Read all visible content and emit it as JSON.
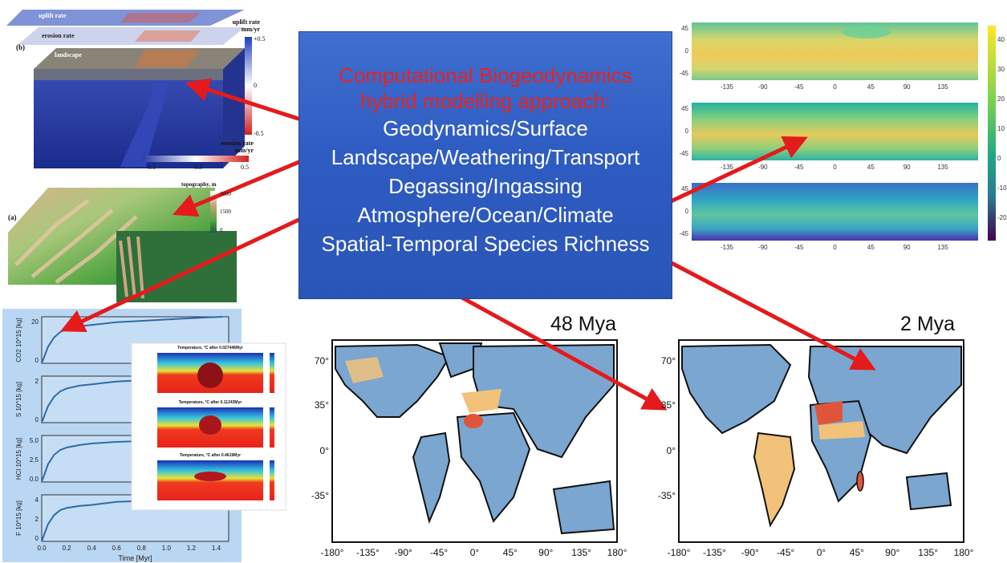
{
  "center": {
    "title_line1": "Computational Biogeodynamics",
    "title_line2": "hybrid modelling approach:",
    "items": [
      "Geodynamics/Surface",
      "Landscape/Weathering/Transport",
      "Degassing/Ingassing",
      "Atmosphere/Ocean/Climate",
      "Spatial-Temporal Species Richness"
    ]
  },
  "block_model": {
    "panel_label": "(b)",
    "layer_labels": [
      "uplift rate",
      "erosion rate",
      "landscape"
    ],
    "uplift_legend": {
      "title_line1": "uplift rate",
      "title_line2": "mm/yr",
      "ticks": [
        "+0.5",
        "0",
        "-0.5"
      ]
    },
    "erosion_legend": {
      "title_line1": "erosion rate",
      "title_line2": "mm/yr",
      "ticks": [
        "0.1",
        "0.3",
        "0.5"
      ]
    }
  },
  "topo": {
    "panel_label": "(a)",
    "legend_title": "topography, m",
    "ticks": [
      "3000",
      "1500",
      "0"
    ]
  },
  "degassing": {
    "ylabels": [
      "CO2 10^15 [kg]",
      "S 10^15 [kg]",
      "HCl 10^15 [kg]",
      "F 10^15 [kg]"
    ],
    "yticks": [
      [
        "20",
        "0"
      ],
      [
        "2",
        "0"
      ],
      [
        "5.0",
        "2.5",
        "0.0"
      ],
      [
        "4",
        "2",
        "0"
      ]
    ],
    "xticks": [
      "0.0",
      "0.2",
      "0.4",
      "0.6",
      "0.8",
      "1.0",
      "1.2",
      "1.4"
    ],
    "xlabel": "Time [Myr]",
    "chart_data": [
      {
        "type": "line",
        "ylabel": "CO2 10^15 [kg]",
        "x": [
          0,
          0.05,
          0.1,
          0.15,
          0.2,
          0.3,
          0.4,
          0.6,
          0.8,
          1.0,
          1.2,
          1.45
        ],
        "y": [
          0,
          12,
          19,
          23,
          25,
          27,
          28,
          30,
          31,
          32,
          33,
          34
        ],
        "ylim": [
          0,
          34
        ]
      },
      {
        "type": "line",
        "ylabel": "S 10^15 [kg]",
        "x": [
          0,
          0.05,
          0.1,
          0.15,
          0.2,
          0.3,
          0.4,
          0.6,
          0.8,
          1.0,
          1.2,
          1.45
        ],
        "y": [
          0,
          1.2,
          1.9,
          2.3,
          2.5,
          2.7,
          2.8,
          3.0,
          3.1,
          3.15,
          3.2,
          3.25
        ],
        "ylim": [
          0,
          3.4
        ]
      },
      {
        "type": "line",
        "ylabel": "HCl 10^15 [kg]",
        "x": [
          0,
          0.05,
          0.1,
          0.15,
          0.2,
          0.3,
          0.4,
          0.6,
          0.8,
          1.0,
          1.2,
          1.45
        ],
        "y": [
          0,
          2.2,
          3.4,
          4.0,
          4.3,
          4.6,
          4.8,
          5.0,
          5.1,
          5.2,
          5.25,
          5.3
        ],
        "ylim": [
          0,
          5.8
        ]
      },
      {
        "type": "line",
        "ylabel": "F 10^15 [kg]",
        "x": [
          0,
          0.05,
          0.1,
          0.15,
          0.2,
          0.3,
          0.4,
          0.6,
          0.8,
          1.0,
          1.2,
          1.45
        ],
        "y": [
          0,
          1.7,
          2.6,
          3.1,
          3.3,
          3.5,
          3.6,
          3.9,
          4.0,
          4.1,
          4.15,
          4.2
        ],
        "ylim": [
          0,
          4.6
        ]
      }
    ]
  },
  "temperature_panels": [
    "Temperature, °C after 0.027446Myr",
    "Temperature, °C after 0.11243Myr",
    "Temperature, °C after 0.4619Myr"
  ],
  "climate_maps": {
    "xticks": [
      "-135",
      "-90",
      "-45",
      "0",
      "45",
      "90",
      "135"
    ],
    "yticks": [
      "45",
      "0",
      "-45"
    ],
    "colorbar_ticks": [
      "40",
      "30",
      "20",
      "10",
      "0",
      "-10",
      "-20"
    ]
  },
  "world_maps": [
    {
      "title": "48 Mya"
    },
    {
      "title": "2 Mya"
    }
  ],
  "world_yticks": [
    "70°",
    "35°",
    "0°",
    "-35°"
  ],
  "world_xticks": [
    "-180°",
    "-135°",
    "-90°",
    "-45°",
    "0°",
    "45°",
    "90°",
    "135°",
    "180°"
  ],
  "colors": {
    "arrow": "#e41a1c",
    "box": "#3260c4",
    "title_red": "#e8231e",
    "ocean": "#ffffff",
    "land": "#7aa6cf",
    "warm": "#f2c27a",
    "hot": "#e0553a"
  }
}
